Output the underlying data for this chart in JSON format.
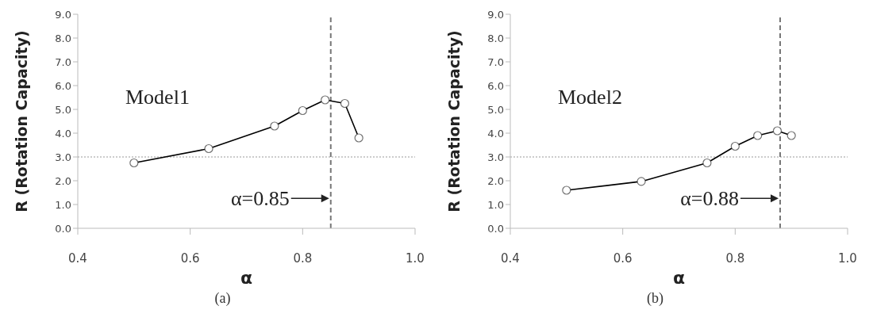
{
  "chart_data": [
    {
      "type": "line",
      "xlabel": "α",
      "ylabel": "R (Rotation Capacity)",
      "x": [
        0.5,
        0.633,
        0.75,
        0.8,
        0.84,
        0.875,
        0.9
      ],
      "series": [
        {
          "color": "#000000",
          "values": [
            2.75,
            3.35,
            4.3,
            4.95,
            5.4,
            5.25,
            3.8
          ]
        }
      ],
      "marker": "circle",
      "line_style": "solid",
      "xlim": [
        0.4,
        1.0
      ],
      "xticks": [
        0.4,
        0.6,
        0.8,
        {
          "value": 1.0,
          "label": "1.0"
        }
      ],
      "ylim": [
        0,
        9
      ],
      "yticks": [
        {
          "value": 0,
          "label": "0.0"
        },
        {
          "value": 1,
          "label": "1.0"
        },
        {
          "value": 2,
          "label": "2.0"
        },
        {
          "value": 3,
          "label": "3.0"
        },
        {
          "value": 4,
          "label": "4.0"
        },
        {
          "value": 5,
          "label": "5.0"
        },
        {
          "value": 6,
          "label": "6.0"
        },
        {
          "value": 7,
          "label": "7.0"
        },
        {
          "value": 8,
          "label": "8.0"
        },
        {
          "value": 9,
          "label": "9.0"
        }
      ],
      "ref_lines": [
        {
          "axis": "y",
          "value": 3,
          "line_style": "dotted",
          "color": "#999999"
        },
        {
          "axis": "x",
          "value": 0.85,
          "label": "α=0.85",
          "line_style": "dashed",
          "color": "#777777"
        }
      ],
      "annotations": [
        "Model1",
        "(a)"
      ]
    },
    {
      "type": "line",
      "xlabel": "α",
      "ylabel": "R (Rotation Capacity)",
      "x": [
        0.5,
        0.633,
        0.75,
        0.8,
        0.84,
        0.875,
        0.9
      ],
      "series": [
        {
          "color": "#000000",
          "values": [
            1.6,
            1.97,
            2.75,
            3.45,
            3.9,
            4.1,
            3.9
          ]
        }
      ],
      "marker": "circle",
      "line_style": "solid",
      "xlim": [
        0.4,
        1.0
      ],
      "xticks": [
        0.4,
        0.6,
        0.8,
        {
          "value": 1.0,
          "label": "1.0"
        }
      ],
      "ylim": [
        0,
        9
      ],
      "yticks": [
        {
          "value": 0,
          "label": "0.0"
        },
        {
          "value": 1,
          "label": "1.0"
        },
        {
          "value": 2,
          "label": "2.0"
        },
        {
          "value": 3,
          "label": "3.0"
        },
        {
          "value": 4,
          "label": "4.0"
        },
        {
          "value": 5,
          "label": "5.0"
        },
        {
          "value": 6,
          "label": "6.0"
        },
        {
          "value": 7,
          "label": "7.0"
        },
        {
          "value": 8,
          "label": "8.0"
        },
        {
          "value": 9,
          "label": "9.0"
        }
      ],
      "ref_lines": [
        {
          "axis": "y",
          "value": 3,
          "line_style": "dotted",
          "color": "#999999"
        },
        {
          "axis": "x",
          "value": 0.88,
          "label": "α=0.88",
          "line_style": "dashed",
          "color": "#777777"
        }
      ],
      "annotations": [
        "Model2",
        "(b)"
      ]
    }
  ]
}
